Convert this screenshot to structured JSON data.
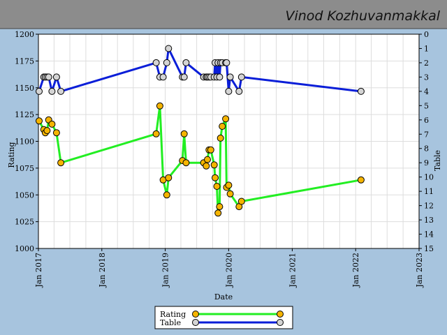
{
  "header": {
    "title": "Vinod Kozhuvanmakkal"
  },
  "colors": {
    "header_bg": "#8c8c8c",
    "frame_bg": "#a7c4de",
    "plot_bg": "#ffffff",
    "grid": "#dddddd",
    "rating_line": "#22ee22",
    "rating_marker": "#f5b400",
    "table_line": "#0a1ed8",
    "table_marker": "#d4d4d4"
  },
  "chart_data": {
    "type": "line",
    "xlabel": "Date",
    "ylabel_left": "Rating",
    "ylabel_right": "Table",
    "x_range": [
      "2017-01-01",
      "2023-01-01"
    ],
    "x_ticks": [
      "Jan 2017",
      "Jan 2018",
      "Jan 2019",
      "Jan 2020",
      "Jan 2021",
      "Jan 2022",
      "Jan 2023"
    ],
    "y_left_range": [
      1000,
      1200
    ],
    "y_left_ticks": [
      "1000",
      "1025",
      "1050",
      "1075",
      "1100",
      "1125",
      "1150",
      "1175",
      "1200"
    ],
    "y_right_range": [
      0,
      15
    ],
    "y_right_ticks": [
      "0",
      "1",
      "2",
      "3",
      "4",
      "5",
      "6",
      "7",
      "8",
      "9",
      "10",
      "11",
      "12",
      "13",
      "14",
      "15"
    ],
    "grid": true,
    "legend_position": "bottom-center",
    "series": [
      {
        "name": "Rating",
        "axis": "left",
        "points": [
          [
            "2017-01-05",
            1119
          ],
          [
            "2017-02-01",
            1111
          ],
          [
            "2017-02-10",
            1108
          ],
          [
            "2017-02-20",
            1110
          ],
          [
            "2017-03-01",
            1120
          ],
          [
            "2017-03-20",
            1116
          ],
          [
            "2017-04-15",
            1108
          ],
          [
            "2017-05-10",
            1080
          ],
          [
            "2018-11-10",
            1107
          ],
          [
            "2018-12-01",
            1133
          ],
          [
            "2018-12-20",
            1064
          ],
          [
            "2019-01-10",
            1050
          ],
          [
            "2019-01-20",
            1066
          ],
          [
            "2019-04-10",
            1082
          ],
          [
            "2019-04-20",
            1107
          ],
          [
            "2019-05-01",
            1080
          ],
          [
            "2019-08-10",
            1080
          ],
          [
            "2019-08-25",
            1077
          ],
          [
            "2019-09-01",
            1083
          ],
          [
            "2019-09-10",
            1092
          ],
          [
            "2019-09-20",
            1092
          ],
          [
            "2019-10-10",
            1078
          ],
          [
            "2019-10-15",
            1066
          ],
          [
            "2019-10-25",
            1058
          ],
          [
            "2019-11-01",
            1033
          ],
          [
            "2019-11-10",
            1039
          ],
          [
            "2019-11-15",
            1103
          ],
          [
            "2019-11-25",
            1114
          ],
          [
            "2019-12-15",
            1121
          ],
          [
            "2019-12-20",
            1057
          ],
          [
            "2020-01-01",
            1059
          ],
          [
            "2020-01-10",
            1051
          ],
          [
            "2020-03-01",
            1039
          ],
          [
            "2020-03-15",
            1044
          ],
          [
            "2022-02-01",
            1064
          ]
        ]
      },
      {
        "name": "Table",
        "axis": "right",
        "points": [
          [
            "2017-01-05",
            4
          ],
          [
            "2017-02-01",
            3
          ],
          [
            "2017-02-10",
            3
          ],
          [
            "2017-02-20",
            3
          ],
          [
            "2017-03-01",
            3
          ],
          [
            "2017-03-20",
            4
          ],
          [
            "2017-04-15",
            3
          ],
          [
            "2017-05-10",
            4
          ],
          [
            "2018-11-10",
            2
          ],
          [
            "2018-12-01",
            3
          ],
          [
            "2018-12-20",
            3
          ],
          [
            "2019-01-10",
            2
          ],
          [
            "2019-01-20",
            1
          ],
          [
            "2019-04-10",
            3
          ],
          [
            "2019-04-20",
            3
          ],
          [
            "2019-05-01",
            2
          ],
          [
            "2019-08-10",
            3
          ],
          [
            "2019-08-25",
            3
          ],
          [
            "2019-09-01",
            3
          ],
          [
            "2019-09-10",
            3
          ],
          [
            "2019-09-20",
            3
          ],
          [
            "2019-10-10",
            3
          ],
          [
            "2019-10-15",
            2
          ],
          [
            "2019-10-25",
            3
          ],
          [
            "2019-11-01",
            2
          ],
          [
            "2019-11-10",
            3
          ],
          [
            "2019-11-15",
            2
          ],
          [
            "2019-11-25",
            2
          ],
          [
            "2019-12-15",
            2
          ],
          [
            "2019-12-20",
            2
          ],
          [
            "2020-01-01",
            4
          ],
          [
            "2020-01-10",
            3
          ],
          [
            "2020-03-01",
            4
          ],
          [
            "2020-03-15",
            3
          ],
          [
            "2022-02-01",
            4
          ]
        ]
      }
    ]
  }
}
